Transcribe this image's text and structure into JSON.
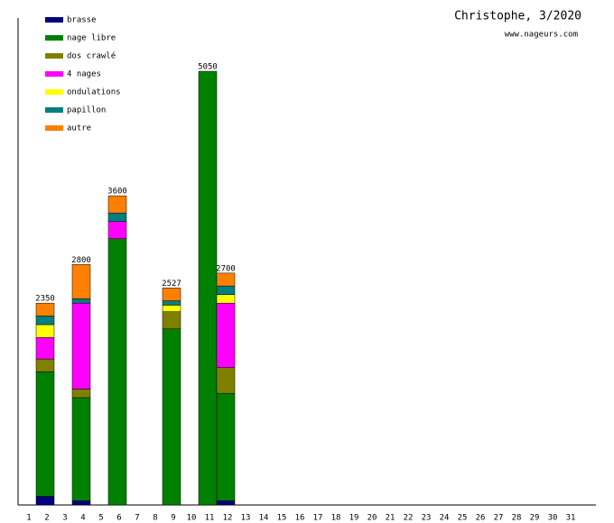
{
  "chart_data": {
    "type": "stacked_bar",
    "title": "Christophe, 3/2020",
    "subtitle": "www.nageurs.com",
    "categories": [
      "1",
      "2",
      "3",
      "4",
      "5",
      "6",
      "7",
      "8",
      "9",
      "10",
      "11",
      "12",
      "13",
      "14",
      "15",
      "16",
      "17",
      "18",
      "19",
      "20",
      "21",
      "22",
      "23",
      "24",
      "25",
      "26",
      "27",
      "28",
      "29",
      "30",
      "31"
    ],
    "ylim": [
      0,
      5670
    ],
    "series": [
      {
        "name": "brasse",
        "color": "#000080",
        "values": [
          null,
          100,
          null,
          50,
          null,
          null,
          null,
          null,
          null,
          null,
          null,
          50,
          null,
          null,
          null,
          null,
          null,
          null,
          null,
          null,
          null,
          null,
          null,
          null,
          null,
          null,
          null,
          null,
          null,
          null,
          null
        ]
      },
      {
        "name": "nage libre",
        "color": "#008000",
        "values": [
          null,
          1450,
          null,
          1200,
          null,
          3100,
          null,
          null,
          2050,
          null,
          5050,
          1250,
          null,
          null,
          null,
          null,
          null,
          null,
          null,
          null,
          null,
          null,
          null,
          null,
          null,
          null,
          null,
          null,
          null,
          null,
          null
        ]
      },
      {
        "name": "dos crawlé",
        "color": "#808000",
        "values": [
          null,
          150,
          null,
          100,
          null,
          null,
          null,
          null,
          200,
          null,
          null,
          300,
          null,
          null,
          null,
          null,
          null,
          null,
          null,
          null,
          null,
          null,
          null,
          null,
          null,
          null,
          null,
          null,
          null,
          null,
          null
        ]
      },
      {
        "name": "4 nages",
        "color": "#ff00ff",
        "values": [
          null,
          250,
          null,
          1000,
          null,
          200,
          null,
          null,
          null,
          null,
          null,
          750,
          null,
          null,
          null,
          null,
          null,
          null,
          null,
          null,
          null,
          null,
          null,
          null,
          null,
          null,
          null,
          null,
          null,
          null,
          null
        ]
      },
      {
        "name": "ondulations",
        "color": "#ffff00",
        "values": [
          null,
          150,
          null,
          null,
          null,
          null,
          null,
          null,
          77,
          null,
          null,
          100,
          null,
          null,
          null,
          null,
          null,
          null,
          null,
          null,
          null,
          null,
          null,
          null,
          null,
          null,
          null,
          null,
          null,
          null,
          null
        ]
      },
      {
        "name": "papillon",
        "color": "#008080",
        "values": [
          null,
          100,
          null,
          50,
          null,
          100,
          null,
          null,
          50,
          null,
          null,
          100,
          null,
          null,
          null,
          null,
          null,
          null,
          null,
          null,
          null,
          null,
          null,
          null,
          null,
          null,
          null,
          null,
          null,
          null,
          null
        ]
      },
      {
        "name": "autre",
        "color": "#ff8000",
        "values": [
          null,
          150,
          null,
          400,
          null,
          200,
          null,
          null,
          150,
          null,
          null,
          150,
          null,
          null,
          null,
          null,
          null,
          null,
          null,
          null,
          null,
          null,
          null,
          null,
          null,
          null,
          null,
          null,
          null,
          null,
          null
        ]
      }
    ],
    "totals": [
      null,
      2350,
      null,
      2800,
      null,
      3600,
      null,
      null,
      2527,
      null,
      5050,
      2700,
      null,
      null,
      null,
      null,
      null,
      null,
      null,
      null,
      null,
      null,
      null,
      null,
      null,
      null,
      null,
      null,
      null,
      null,
      null
    ]
  }
}
